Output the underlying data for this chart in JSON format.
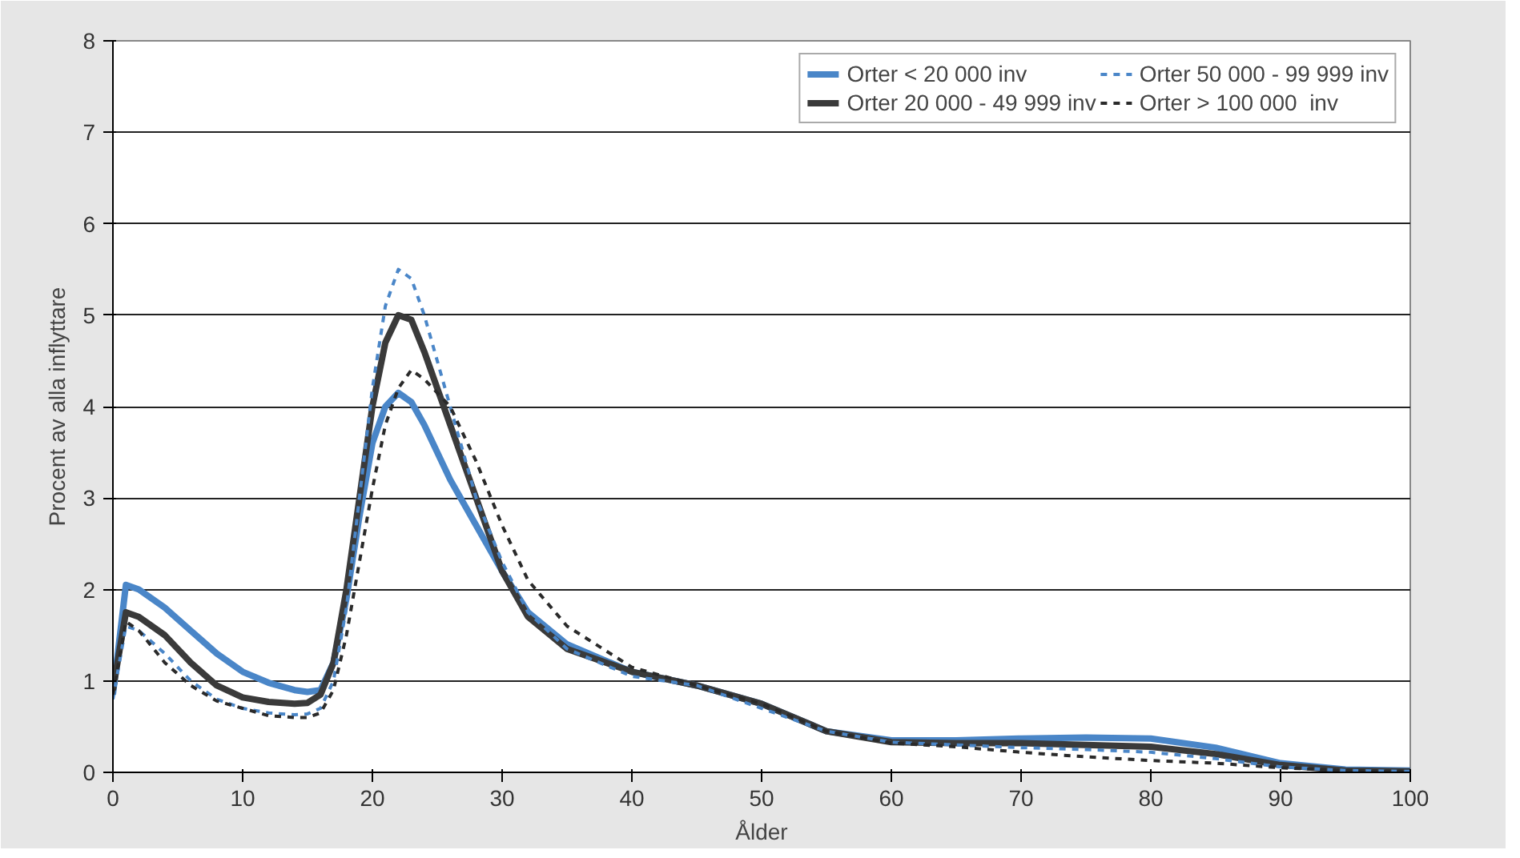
{
  "chart_data": {
    "type": "line",
    "xlabel": "Ålder",
    "ylabel": "Procent av alla inflyttare",
    "x": [
      0,
      1,
      2,
      4,
      6,
      8,
      10,
      12,
      14,
      15,
      16,
      17,
      18,
      19,
      20,
      21,
      22,
      23,
      24,
      26,
      28,
      30,
      32,
      35,
      40,
      45,
      50,
      55,
      60,
      65,
      70,
      75,
      80,
      85,
      90,
      95,
      100
    ],
    "xlim": [
      0,
      100
    ],
    "xticks": [
      0,
      10,
      20,
      30,
      40,
      50,
      60,
      70,
      80,
      90,
      100
    ],
    "ylim": [
      0,
      8
    ],
    "yticks": [
      0,
      1,
      2,
      3,
      4,
      5,
      6,
      7,
      8
    ],
    "grid": "y",
    "legend": "top right",
    "series": [
      {
        "name": "Orter < 20 000 inv",
        "color": "#4a86c8",
        "line_style": "solid",
        "values": [
          0.85,
          2.05,
          2.0,
          1.8,
          1.55,
          1.3,
          1.1,
          0.98,
          0.9,
          0.88,
          0.9,
          1.2,
          1.9,
          2.8,
          3.6,
          4.0,
          4.15,
          4.05,
          3.8,
          3.2,
          2.7,
          2.2,
          1.75,
          1.4,
          1.1,
          0.95,
          0.75,
          0.45,
          0.35,
          0.35,
          0.37,
          0.38,
          0.37,
          0.27,
          0.1,
          0.03,
          0.02
        ]
      },
      {
        "name": "Orter 20 000 - 49 999 inv",
        "color": "#3a3a3a",
        "line_style": "solid",
        "values": [
          0.9,
          1.75,
          1.7,
          1.5,
          1.2,
          0.95,
          0.82,
          0.77,
          0.75,
          0.76,
          0.85,
          1.2,
          2.0,
          3.0,
          4.0,
          4.7,
          5.0,
          4.95,
          4.6,
          3.8,
          3.0,
          2.2,
          1.7,
          1.35,
          1.1,
          0.95,
          0.75,
          0.45,
          0.33,
          0.32,
          0.32,
          0.3,
          0.28,
          0.2,
          0.08,
          0.02,
          0.01
        ]
      },
      {
        "name": "Orter 50 000 - 99 999 inv",
        "color": "#4a86c8",
        "line_style": "dashed",
        "values": [
          0.8,
          1.6,
          1.55,
          1.3,
          1.0,
          0.8,
          0.7,
          0.65,
          0.63,
          0.64,
          0.7,
          1.0,
          1.8,
          3.0,
          4.2,
          5.1,
          5.5,
          5.4,
          5.0,
          4.0,
          3.0,
          2.3,
          1.75,
          1.35,
          1.05,
          0.95,
          0.7,
          0.45,
          0.33,
          0.3,
          0.27,
          0.25,
          0.22,
          0.15,
          0.06,
          0.02,
          0.01
        ]
      },
      {
        "name": "Orter > 100 000  inv",
        "color": "#2a2a2a",
        "line_style": "dashed",
        "values": [
          0.85,
          1.65,
          1.55,
          1.2,
          0.95,
          0.78,
          0.7,
          0.62,
          0.6,
          0.6,
          0.65,
          0.9,
          1.5,
          2.3,
          3.1,
          3.8,
          4.2,
          4.4,
          4.3,
          4.0,
          3.4,
          2.7,
          2.1,
          1.6,
          1.15,
          0.95,
          0.75,
          0.45,
          0.32,
          0.28,
          0.22,
          0.17,
          0.13,
          0.1,
          0.05,
          0.02,
          0.01
        ]
      }
    ]
  }
}
